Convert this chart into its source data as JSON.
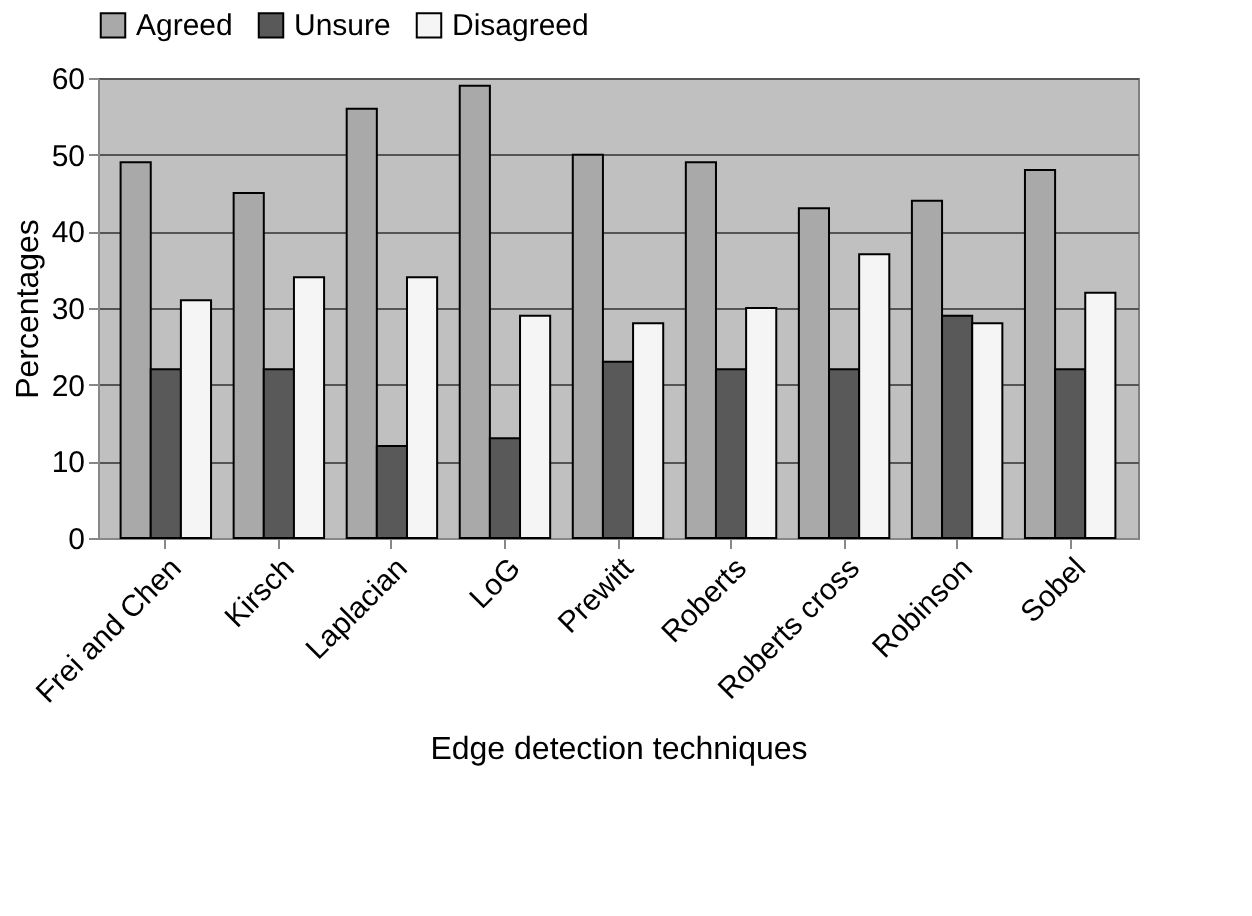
{
  "chart_data": {
    "type": "bar",
    "xlabel": "Edge detection techniques",
    "ylabel": "Percentages",
    "categories": [
      "Frei and Chen",
      "Kirsch",
      "Laplacian",
      "LoG",
      "Prewitt",
      "Roberts",
      "Roberts cross",
      "Robinson",
      "Sobel"
    ],
    "series": [
      {
        "name": "Agreed",
        "color": "#a9a9a9",
        "values": [
          49,
          45,
          56,
          59,
          50,
          49,
          43,
          44,
          48
        ]
      },
      {
        "name": "Unsure",
        "color": "#595959",
        "values": [
          22,
          22,
          12,
          13,
          23,
          22,
          22,
          29,
          22
        ]
      },
      {
        "name": "Disagreed",
        "color": "#f5f5f5",
        "values": [
          31,
          34,
          34,
          29,
          28,
          30,
          37,
          28,
          32
        ]
      }
    ],
    "ylim": [
      0,
      60
    ],
    "yticks": [
      0,
      10,
      20,
      30,
      40,
      50,
      60
    ],
    "grid": "y",
    "legend": "top"
  }
}
